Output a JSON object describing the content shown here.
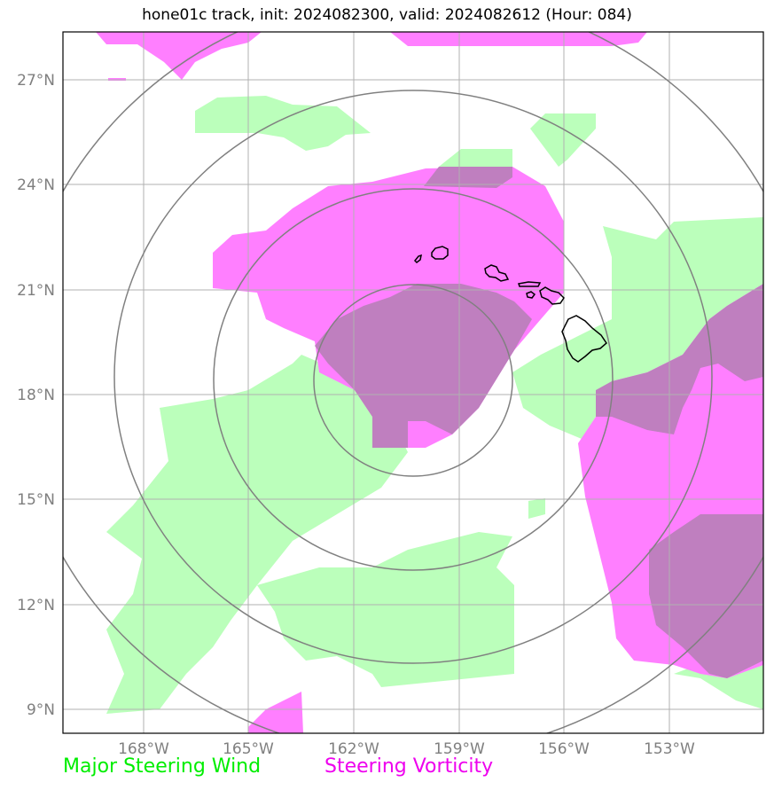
{
  "title": "hone01c track, init: 2024082300, valid: 2024082612 (Hour: 084)",
  "latitudes": [
    "27°N",
    "24°N",
    "21°N",
    "18°N",
    "15°N",
    "12°N",
    "9°N"
  ],
  "longitudes": [
    "168°W",
    "165°W",
    "162°W",
    "159°W",
    "156°W",
    "153°W"
  ],
  "legend": {
    "wind_label": "Major Steering Wind",
    "vorticity_label": "Steering Vorticity"
  },
  "colors": {
    "wind": "#bbffbb",
    "vorticity": "#ff7fff",
    "overlap": "#bf7fbf",
    "grid": "#b0b0b0",
    "rings": "#808080",
    "coast": "#000000"
  }
}
